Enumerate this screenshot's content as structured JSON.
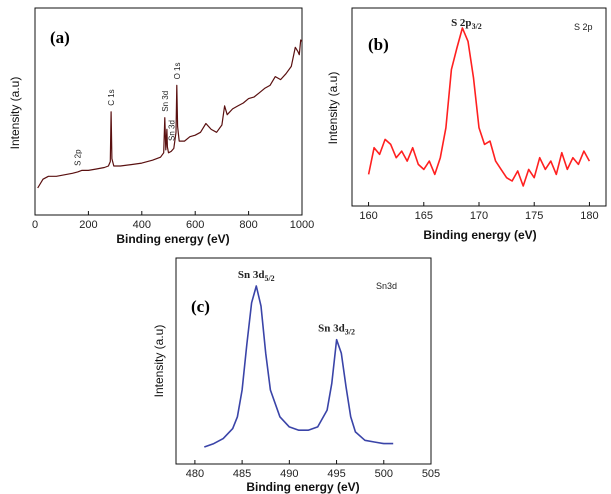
{
  "chart_data": [
    {
      "type": "line",
      "panel_label": "(a)",
      "xlabel": "Binding energy (eV)",
      "ylabel": "Intensity (a.u)",
      "xlim": [
        0,
        1000
      ],
      "xticks": [
        "0",
        "200",
        "400",
        "600",
        "800",
        "1000"
      ],
      "color": "#5a1010",
      "annotations": [
        {
          "text": "S 2p",
          "x": 160
        },
        {
          "text": "C 1s",
          "x": 285
        },
        {
          "text": "Sn 3d",
          "x": 486
        },
        {
          "text": "Sn 3d",
          "x": 496
        },
        {
          "text": "O 1s",
          "x": 531
        }
      ],
      "x": [
        10,
        30,
        50,
        80,
        110,
        140,
        160,
        175,
        200,
        230,
        260,
        275,
        282,
        285,
        288,
        295,
        320,
        360,
        400,
        440,
        470,
        482,
        486,
        490,
        494,
        496,
        500,
        510,
        520,
        528,
        531,
        534,
        540,
        560,
        580,
        600,
        620,
        640,
        660,
        680,
        700,
        710,
        720,
        740,
        760,
        780,
        800,
        820,
        840,
        860,
        880,
        900,
        920,
        940,
        960,
        975,
        985,
        990,
        995,
        1000
      ],
      "y": [
        2,
        8,
        10,
        10,
        11,
        12,
        13,
        14,
        14,
        15,
        16,
        17,
        20,
        54,
        22,
        17,
        17,
        18,
        19,
        21,
        23,
        26,
        50,
        28,
        42,
        30,
        26,
        27,
        29,
        40,
        72,
        44,
        34,
        34,
        37,
        38,
        40,
        46,
        42,
        40,
        45,
        58,
        52,
        56,
        58,
        60,
        63,
        64,
        67,
        70,
        72,
        78,
        76,
        80,
        85,
        98,
        95,
        93,
        103,
        102
      ]
    },
    {
      "type": "line",
      "panel_label": "(b)",
      "xlabel": "Binding energy (eV)",
      "ylabel": "Intensity (a.u)",
      "xlim": [
        158.5,
        181.5
      ],
      "xticks": [
        "160",
        "165",
        "170",
        "175",
        "180"
      ],
      "color": "#ff2020",
      "corner_label": "S 2p",
      "peak_label": "S 2p3/2",
      "x": [
        160,
        160.5,
        161,
        161.5,
        162,
        162.5,
        163,
        163.5,
        164,
        164.5,
        165,
        165.5,
        166,
        166.5,
        167,
        167.5,
        168,
        168.5,
        169,
        169.5,
        170,
        170.5,
        171,
        171.5,
        172,
        172.5,
        173,
        173.5,
        174,
        174.5,
        175,
        175.5,
        176,
        176.5,
        177,
        177.5,
        178,
        178.5,
        179,
        179.5,
        180
      ],
      "y": [
        12,
        28,
        24,
        33,
        30,
        22,
        26,
        20,
        28,
        18,
        15,
        20,
        12,
        22,
        40,
        75,
        88,
        100,
        92,
        70,
        40,
        30,
        32,
        20,
        15,
        10,
        8,
        14,
        5,
        15,
        10,
        22,
        15,
        20,
        12,
        25,
        15,
        22,
        18,
        26,
        20
      ]
    },
    {
      "type": "line",
      "panel_label": "(c)",
      "xlabel": "Binding energy (eV)",
      "ylabel": "Intensity (a.u)",
      "xlim": [
        478,
        505
      ],
      "xticks": [
        "480",
        "485",
        "490",
        "495",
        "500",
        "505"
      ],
      "color": "#3a44a8",
      "corner_label": "Sn3d",
      "peak_labels": [
        {
          "text": "Sn 3d5/2",
          "x": 486.5
        },
        {
          "text": "Sn 3d3/2",
          "x": 495
        }
      ],
      "x": [
        481,
        482,
        483,
        484,
        484.5,
        485,
        485.5,
        486,
        486.5,
        487,
        487.5,
        488,
        489,
        490,
        491,
        492,
        493,
        494,
        494.5,
        495,
        495.5,
        496,
        496.5,
        497,
        498,
        499,
        500,
        501
      ],
      "y": [
        4,
        6,
        9,
        15,
        22,
        38,
        65,
        90,
        100,
        88,
        60,
        38,
        22,
        16,
        14,
        14,
        16,
        26,
        42,
        68,
        60,
        40,
        22,
        13,
        8,
        7,
        6,
        6
      ]
    }
  ]
}
